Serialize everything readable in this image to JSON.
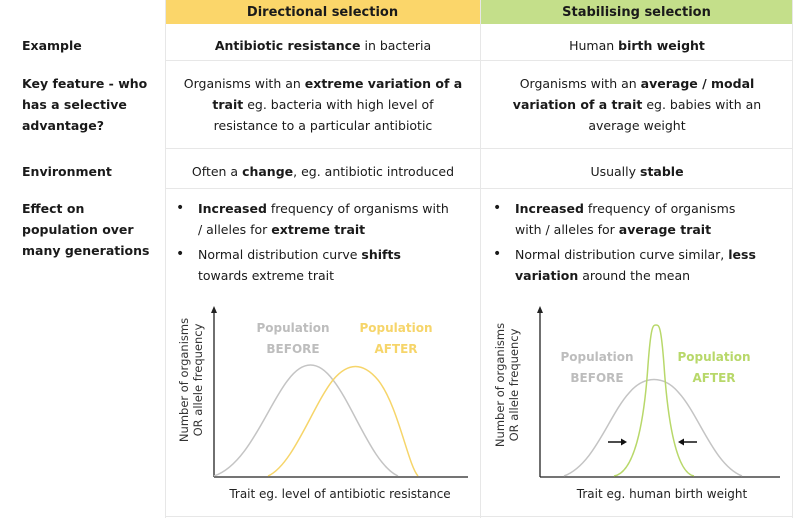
{
  "header": {
    "col1": "Directional selection",
    "col2": "Stabilising selection"
  },
  "rows": {
    "example": {
      "label": "Example",
      "dir_bold": "Antibiotic resistance",
      "dir_rest": " in bacteria",
      "stab_pre": "Human ",
      "stab_bold": "birth weight"
    },
    "key_feature": {
      "label_l1": "Key feature  - who",
      "label_l2": "has a selective",
      "label_l3": "advantage?",
      "dir_l1_pre": "Organisms with an ",
      "dir_l1_bold": "extreme variation of a",
      "dir_l2_bold": "trait",
      "dir_l2_rest": " eg. bacteria with high level of",
      "dir_l3": "resistance to a particular antibiotic",
      "stab_l1_pre": "Organisms with an ",
      "stab_l1_bold": "average / modal",
      "stab_l2_bold": "variation of a trait",
      "stab_l2_rest": " eg. babies with an",
      "stab_l3": "average weight"
    },
    "environment": {
      "label": "Environment",
      "dir_pre": "Often a ",
      "dir_bold": "change",
      "dir_rest": ", eg. antibiotic introduced",
      "stab_pre": "Usually ",
      "stab_bold": "stable"
    },
    "effect": {
      "label_l1": "Effect on",
      "label_l2": "population over",
      "label_l3": "many generations",
      "dir_b1_bold": "Increased",
      "dir_b1_l1_rest": " frequency of organisms with",
      "dir_b1_l2_pre": "/ alleles for ",
      "dir_b1_l2_bold": "extreme trait",
      "dir_b2_l1_pre": "Normal distribution curve ",
      "dir_b2_l1_bold": "shifts",
      "dir_b2_l2": "towards extreme trait",
      "stab_b1_bold": "Increased",
      "stab_b1_l1_rest": " frequency of organisms",
      "stab_b1_l2_pre": "with / alleles for ",
      "stab_b1_l2_bold": "average trait",
      "stab_b2_l1_pre": "Normal distribution curve similar, ",
      "stab_b2_l1_bold": "less",
      "stab_b2_l2_bold": "variation",
      "stab_b2_l2_rest": " around the mean"
    }
  },
  "graphs": {
    "y_label_l1": "Number of organisms",
    "y_label_l2": "OR allele frequency",
    "directional": {
      "before_l1": "Population",
      "before_l2": "BEFORE",
      "after_l1": "Population",
      "after_l2": "AFTER",
      "x_label": "Trait eg. level of antibiotic resistance"
    },
    "stabilising": {
      "before_l1": "Population",
      "before_l2": "BEFORE",
      "after_l1": "Population",
      "after_l2": "AFTER",
      "x_label": "Trait eg. human birth weight"
    }
  },
  "colors": {
    "directional_header": "#fbd66a",
    "stabilising_header": "#c4df8a",
    "before_curve": "#c4c4c4",
    "directional_after_curve": "#f6d56a",
    "stabilising_after_curve": "#b8d86a"
  }
}
